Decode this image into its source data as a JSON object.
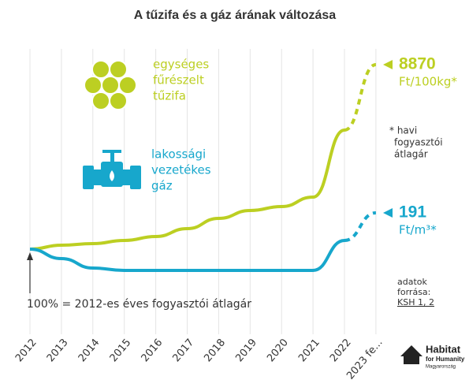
{
  "chart_data": {
    "type": "line",
    "title": "A tűzifa és a gáz árának változása",
    "categories": [
      "2012",
      "2013",
      "2014",
      "2015",
      "2016",
      "2017",
      "2018",
      "2019",
      "2020",
      "2021",
      "2022",
      "2023 fe..."
    ],
    "series": [
      {
        "name": [
          "egységes",
          "fűrészelt",
          "tűzifa"
        ],
        "color": "#bccf22",
        "values": [
          100,
          105,
          107,
          111,
          116,
          126,
          139,
          149,
          154,
          166,
          251,
          334
        ],
        "end_value": "8870",
        "end_unit": "Ft/100kg*"
      },
      {
        "name": [
          "lakossági",
          "vezetékes",
          "gáz"
        ],
        "color": "#17a7cc",
        "values": [
          100,
          88,
          76,
          73,
          73,
          73,
          73,
          73,
          73,
          73,
          111,
          146
        ],
        "end_value": "191",
        "end_unit": "Ft/m³*"
      }
    ],
    "ylim": [
      0,
      376
    ],
    "grid": true,
    "notes": {
      "monthly": [
        "* havi",
        "fogyasztói",
        "átlagár"
      ],
      "base": "100% = 2012-es éves fogyasztói átlagár",
      "source": [
        "adatok",
        "forrása:"
      ],
      "source_link": "KSH 1, 2"
    },
    "logo": [
      "Habitat",
      "for Humanity",
      "Magyarország"
    ]
  }
}
